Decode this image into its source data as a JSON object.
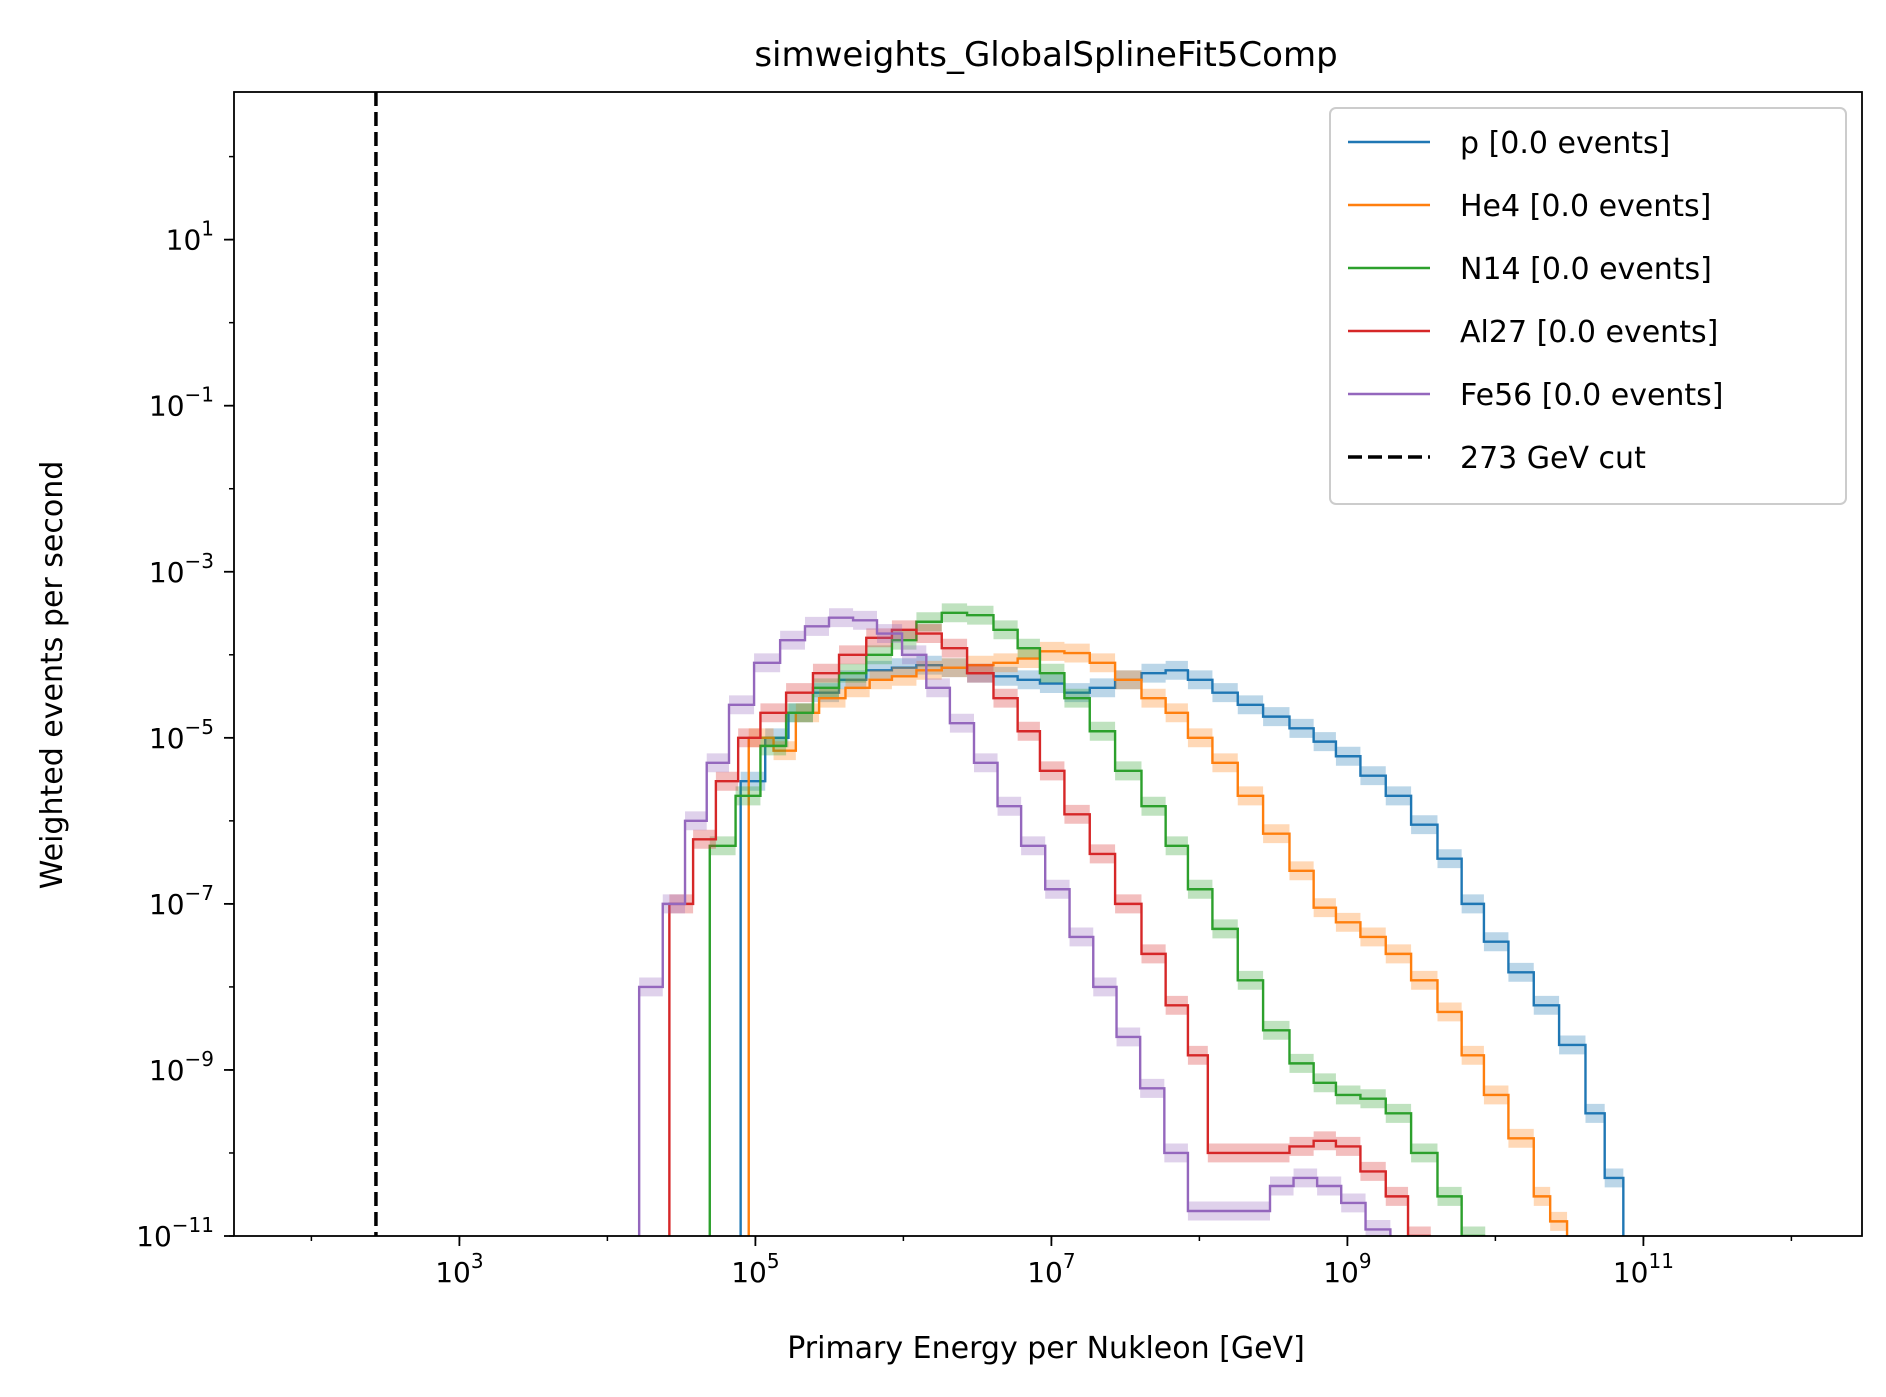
{
  "chart_data": {
    "type": "line",
    "title": "simweights_GlobalSplineFit5Comp",
    "xlabel": "Primary Energy per Nukleon [GeV]",
    "ylabel": "Weighted events per second",
    "xscale": "log",
    "yscale": "log",
    "xlim": [
      30,
      3000000000000.0
    ],
    "ylim": [
      1e-11,
      600
    ],
    "x_ticks": [
      {
        "value": 1000.0,
        "base": "10",
        "exp": "3"
      },
      {
        "value": 100000.0,
        "base": "10",
        "exp": "5"
      },
      {
        "value": 10000000.0,
        "base": "10",
        "exp": "7"
      },
      {
        "value": 1000000000.0,
        "base": "10",
        "exp": "9"
      },
      {
        "value": 100000000000.0,
        "base": "10",
        "exp": "11"
      }
    ],
    "y_ticks": [
      {
        "value": 10.0,
        "base": "10",
        "exp": "1"
      },
      {
        "value": 0.1,
        "base": "10",
        "exp": "−1"
      },
      {
        "value": 0.001,
        "base": "10",
        "exp": "−3"
      },
      {
        "value": 1e-05,
        "base": "10",
        "exp": "−5"
      },
      {
        "value": 1e-07,
        "base": "10",
        "exp": "−7"
      },
      {
        "value": 1e-09,
        "base": "10",
        "exp": "−9"
      },
      {
        "value": 1e-11,
        "base": "10",
        "exp": "−11"
      }
    ],
    "grid": false,
    "legend_position": "top-right",
    "cut": {
      "name": "273 GeV cut",
      "x": 273,
      "color": "#000000",
      "style": "dashed"
    },
    "series": [
      {
        "name": "p [0.0 events]",
        "color": "#1f77b4",
        "points": [
          [
            97000.0,
            3e-06
          ],
          [
            140000.0,
            1e-05
          ],
          [
            200000.0,
            2e-05
          ],
          [
            300000.0,
            3.5e-05
          ],
          [
            450000.0,
            5e-05
          ],
          [
            700000.0,
            6.5e-05
          ],
          [
            1000000.0,
            7e-05
          ],
          [
            1500000.0,
            7.5e-05
          ],
          [
            2200000.0,
            7e-05
          ],
          [
            3300000.0,
            6e-05
          ],
          [
            5000000.0,
            5.5e-05
          ],
          [
            7000000.0,
            5e-05
          ],
          [
            10000000.0,
            4.5e-05
          ],
          [
            15000000.0,
            3.5e-05
          ],
          [
            22000000.0,
            4e-05
          ],
          [
            33000000.0,
            5e-05
          ],
          [
            50000000.0,
            6e-05
          ],
          [
            70000000.0,
            6.5e-05
          ],
          [
            100000000.0,
            5e-05
          ],
          [
            150000000.0,
            3.5e-05
          ],
          [
            220000000.0,
            2.5e-05
          ],
          [
            330000000.0,
            1.8e-05
          ],
          [
            500000000.0,
            1.3e-05
          ],
          [
            700000000.0,
            9e-06
          ],
          [
            1000000000.0,
            6e-06
          ],
          [
            1500000000.0,
            3.5e-06
          ],
          [
            2200000000.0,
            2e-06
          ],
          [
            3300000000.0,
            9e-07
          ],
          [
            5000000000.0,
            3.5e-07
          ],
          [
            7000000000.0,
            1e-07
          ],
          [
            10000000000.0,
            3.5e-08
          ],
          [
            15000000000.0,
            1.5e-08
          ],
          [
            22000000000.0,
            6e-09
          ],
          [
            33000000000.0,
            2e-09
          ],
          [
            50000000000.0,
            3e-10
          ],
          [
            60000000000.0,
            5e-11
          ]
        ]
      },
      {
        "name": "He4 [0.0 events]",
        "color": "#ff7f0e",
        "points": [
          [
            110000.0,
            1e-05
          ],
          [
            160000.0,
            7e-06
          ],
          [
            220000.0,
            2e-05
          ],
          [
            330000.0,
            3e-05
          ],
          [
            500000.0,
            4e-05
          ],
          [
            700000.0,
            5e-05
          ],
          [
            1000000.0,
            5.5e-05
          ],
          [
            1500000.0,
            6.5e-05
          ],
          [
            2200000.0,
            7e-05
          ],
          [
            3300000.0,
            7.5e-05
          ],
          [
            5000000.0,
            8e-05
          ],
          [
            7000000.0,
            9e-05
          ],
          [
            10000000.0,
            0.00011
          ],
          [
            15000000.0,
            0.000105
          ],
          [
            22000000.0,
            8e-05
          ],
          [
            33000000.0,
            5e-05
          ],
          [
            50000000.0,
            3e-05
          ],
          [
            70000000.0,
            2e-05
          ],
          [
            100000000.0,
            1e-05
          ],
          [
            150000000.0,
            5e-06
          ],
          [
            220000000.0,
            2e-06
          ],
          [
            330000000.0,
            7e-07
          ],
          [
            500000000.0,
            2.5e-07
          ],
          [
            700000000.0,
            9e-08
          ],
          [
            1000000000.0,
            6e-08
          ],
          [
            1500000000.0,
            4e-08
          ],
          [
            2200000000.0,
            2.5e-08
          ],
          [
            3300000000.0,
            1.2e-08
          ],
          [
            5000000000.0,
            5e-09
          ],
          [
            7000000000.0,
            1.5e-09
          ],
          [
            10000000000.0,
            5e-10
          ],
          [
            15000000000.0,
            1.5e-10
          ],
          [
            22000000000.0,
            3e-11
          ],
          [
            25000000000.0,
            1.5e-11
          ]
        ]
      },
      {
        "name": "N14 [0.0 events]",
        "color": "#2ca02c",
        "points": [
          [
            60000.0,
            5e-07
          ],
          [
            90000.0,
            2e-06
          ],
          [
            130000.0,
            8e-06
          ],
          [
            200000.0,
            2e-05
          ],
          [
            300000.0,
            4e-05
          ],
          [
            450000.0,
            6e-05
          ],
          [
            700000.0,
            0.0001
          ],
          [
            1000000.0,
            0.00015
          ],
          [
            1500000.0,
            0.00025
          ],
          [
            2200000.0,
            0.00032
          ],
          [
            3300000.0,
            0.0003
          ],
          [
            5000000.0,
            0.0002
          ],
          [
            7000000.0,
            0.00012
          ],
          [
            10000000.0,
            6e-05
          ],
          [
            15000000.0,
            3e-05
          ],
          [
            22000000.0,
            1.2e-05
          ],
          [
            33000000.0,
            4e-06
          ],
          [
            50000000.0,
            1.5e-06
          ],
          [
            70000000.0,
            5e-07
          ],
          [
            100000000.0,
            1.5e-07
          ],
          [
            150000000.0,
            5e-08
          ],
          [
            220000000.0,
            1.2e-08
          ],
          [
            330000000.0,
            3e-09
          ],
          [
            500000000.0,
            1.2e-09
          ],
          [
            700000000.0,
            7e-10
          ],
          [
            1000000000.0,
            5e-10
          ],
          [
            1500000000.0,
            4.5e-10
          ],
          [
            2200000000.0,
            3e-10
          ],
          [
            3300000000.0,
            1e-10
          ],
          [
            5000000000.0,
            3e-11
          ],
          [
            7000000000.0,
            1e-11
          ]
        ]
      },
      {
        "name": "Al27 [0.0 events]",
        "color": "#d62728",
        "points": [
          [
            32000.0,
            1e-07
          ],
          [
            45000.0,
            6e-07
          ],
          [
            65000.0,
            3e-06
          ],
          [
            90000.0,
            1e-05
          ],
          [
            130000.0,
            2e-05
          ],
          [
            200000.0,
            3.5e-05
          ],
          [
            300000.0,
            6e-05
          ],
          [
            450000.0,
            0.0001
          ],
          [
            700000.0,
            0.00016
          ],
          [
            1000000.0,
            0.0002
          ],
          [
            1500000.0,
            0.00018
          ],
          [
            2200000.0,
            0.00012
          ],
          [
            3300000.0,
            6e-05
          ],
          [
            5000000.0,
            3e-05
          ],
          [
            7000000.0,
            1.2e-05
          ],
          [
            10000000.0,
            4e-06
          ],
          [
            15000000.0,
            1.2e-06
          ],
          [
            22000000.0,
            4e-07
          ],
          [
            33000000.0,
            1e-07
          ],
          [
            50000000.0,
            2.5e-08
          ],
          [
            70000000.0,
            6e-09
          ],
          [
            100000000.0,
            1.5e-09
          ],
          [
            130000000.0,
            1e-10
          ],
          [
            330000000.0,
            1e-10
          ],
          [
            500000000.0,
            1.2e-10
          ],
          [
            700000000.0,
            1.4e-10
          ],
          [
            1000000000.0,
            1.2e-10
          ],
          [
            1500000000.0,
            6e-11
          ],
          [
            2200000000.0,
            3e-11
          ],
          [
            3000000000.0,
            1e-11
          ]
        ]
      },
      {
        "name": "Fe56 [0.0 events]",
        "color": "#9467bd",
        "points": [
          [
            20000.0,
            1e-08
          ],
          [
            28000.0,
            1e-07
          ],
          [
            40000.0,
            1e-06
          ],
          [
            55000.0,
            5e-06
          ],
          [
            80000.0,
            2.5e-05
          ],
          [
            120000.0,
            8e-05
          ],
          [
            180000.0,
            0.00015
          ],
          [
            260000.0,
            0.00022
          ],
          [
            380000.0,
            0.00028
          ],
          [
            550000.0,
            0.00026
          ],
          [
            800000.0,
            0.00018
          ],
          [
            1200000.0,
            0.0001
          ],
          [
            1700000.0,
            4e-05
          ],
          [
            2500000.0,
            1.5e-05
          ],
          [
            3600000.0,
            5e-06
          ],
          [
            5200000.0,
            1.5e-06
          ],
          [
            7500000.0,
            5e-07
          ],
          [
            11000000.0,
            1.5e-07
          ],
          [
            16000000.0,
            4e-08
          ],
          [
            23000000.0,
            1e-08
          ],
          [
            33000000.0,
            2.5e-09
          ],
          [
            48000000.0,
            6e-10
          ],
          [
            70000000.0,
            1e-10
          ],
          [
            100000000.0,
            2e-11
          ],
          [
            250000000.0,
            2e-11
          ],
          [
            360000000.0,
            4e-11
          ],
          [
            520000000.0,
            5e-11
          ],
          [
            750000000.0,
            4e-11
          ],
          [
            1100000000.0,
            2.5e-11
          ],
          [
            1600000000.0,
            1.2e-11
          ]
        ]
      }
    ]
  }
}
